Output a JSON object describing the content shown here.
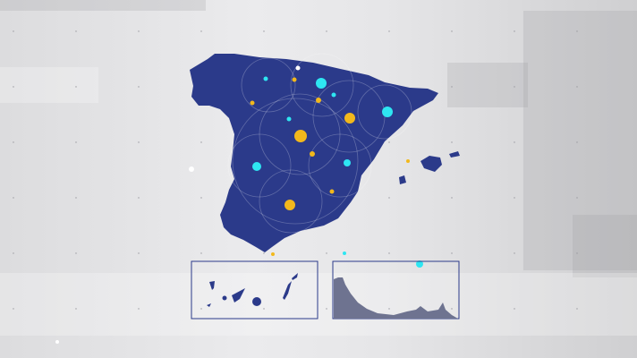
{
  "colors": {
    "land": "#2b3a8a",
    "marker_cyan": "#2ee6f2",
    "marker_yellow": "#f2b81c",
    "inset_border": "#2b3a8a",
    "coast_profile": "#6e7390"
  },
  "icons": {
    "main_map": "spain-map",
    "inset_left": "canary-islands-map",
    "inset_right": "coast-profile"
  }
}
